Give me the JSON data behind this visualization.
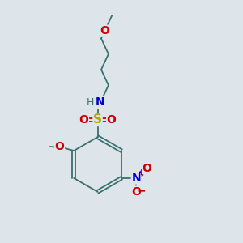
{
  "background_color": "#dde5ea",
  "bond_color": "#3a7070",
  "atom_colors": {
    "N": "#0000cc",
    "O": "#cc0000",
    "S": "#aaaa00",
    "H": "#3a7070",
    "C": "#3a7070"
  },
  "figsize": [
    3.0,
    3.0
  ],
  "dpi": 100
}
